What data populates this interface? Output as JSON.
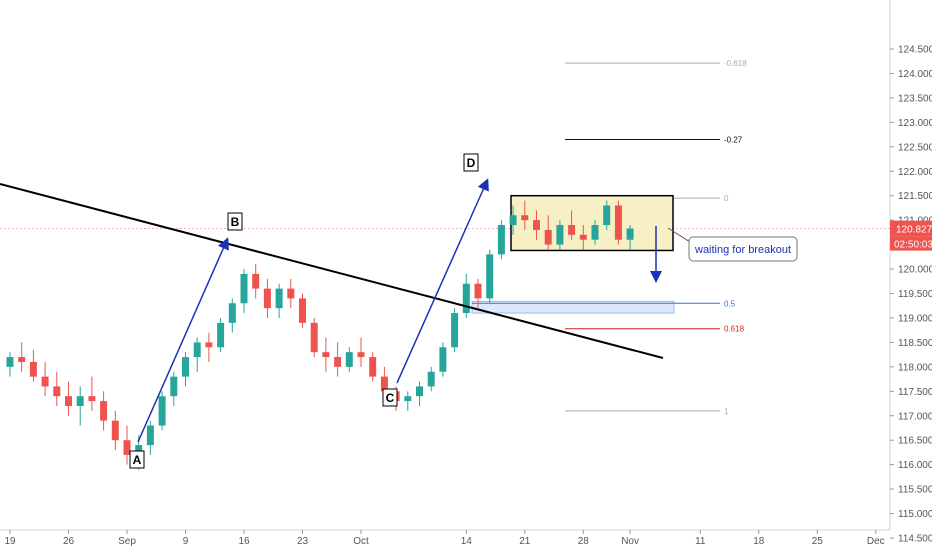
{
  "chart_data": {
    "type": "candlestick",
    "y_axis": {
      "ticks": [
        "114.500",
        "115.000",
        "115.500",
        "116.000",
        "116.500",
        "117.000",
        "117.500",
        "118.000",
        "118.500",
        "119.000",
        "119.500",
        "120.000",
        "120.500",
        "121.000",
        "121.500",
        "122.000",
        "122.500",
        "123.000",
        "123.500",
        "124.000",
        "124.500"
      ],
      "min": 114.5,
      "max": 124.5
    },
    "x_axis": {
      "ticks": [
        {
          "label": "19",
          "i": 0
        },
        {
          "label": "26",
          "i": 5
        },
        {
          "label": "Sep",
          "i": 10
        },
        {
          "label": "9",
          "i": 15
        },
        {
          "label": "16",
          "i": 20
        },
        {
          "label": "23",
          "i": 25
        },
        {
          "label": "Oct",
          "i": 30
        },
        {
          "label": "14",
          "i": 39
        },
        {
          "label": "21",
          "i": 44
        },
        {
          "label": "28",
          "i": 49
        },
        {
          "label": "Nov",
          "i": 53
        },
        {
          "label": "11",
          "i": 59
        },
        {
          "label": "18",
          "i": 64
        },
        {
          "label": "25",
          "i": 69
        },
        {
          "label": "Dec",
          "i": 74
        }
      ]
    },
    "candles": [
      [
        118.0,
        118.3,
        117.8,
        118.2
      ],
      [
        118.2,
        118.5,
        117.9,
        118.1
      ],
      [
        118.1,
        118.35,
        117.7,
        117.8
      ],
      [
        117.8,
        118.1,
        117.4,
        117.6
      ],
      [
        117.6,
        117.9,
        117.2,
        117.4
      ],
      [
        117.4,
        117.7,
        117.0,
        117.2
      ],
      [
        117.2,
        117.6,
        116.8,
        117.4
      ],
      [
        117.4,
        117.8,
        117.1,
        117.3
      ],
      [
        117.3,
        117.5,
        116.7,
        116.9
      ],
      [
        116.9,
        117.1,
        116.3,
        116.5
      ],
      [
        116.5,
        116.8,
        116.0,
        116.2
      ],
      [
        116.2,
        116.6,
        115.9,
        116.4
      ],
      [
        116.4,
        116.9,
        116.2,
        116.8
      ],
      [
        116.8,
        117.5,
        116.7,
        117.4
      ],
      [
        117.4,
        117.9,
        117.2,
        117.8
      ],
      [
        117.8,
        118.3,
        117.6,
        118.2
      ],
      [
        118.2,
        118.6,
        117.9,
        118.5
      ],
      [
        118.5,
        118.7,
        118.1,
        118.4
      ],
      [
        118.4,
        119.0,
        118.3,
        118.9
      ],
      [
        118.9,
        119.4,
        118.7,
        119.3
      ],
      [
        119.3,
        120.0,
        119.1,
        119.9
      ],
      [
        119.9,
        120.1,
        119.4,
        119.6
      ],
      [
        119.6,
        119.8,
        119.0,
        119.2
      ],
      [
        119.2,
        119.7,
        119.0,
        119.6
      ],
      [
        119.6,
        119.8,
        119.2,
        119.4
      ],
      [
        119.4,
        119.5,
        118.8,
        118.9
      ],
      [
        118.9,
        119.0,
        118.2,
        118.3
      ],
      [
        118.3,
        118.6,
        117.9,
        118.2
      ],
      [
        118.2,
        118.5,
        117.8,
        118.0
      ],
      [
        118.0,
        118.4,
        117.9,
        118.3
      ],
      [
        118.3,
        118.6,
        118.0,
        118.2
      ],
      [
        118.2,
        118.3,
        117.7,
        117.8
      ],
      [
        117.8,
        118.0,
        117.4,
        117.5
      ],
      [
        117.5,
        117.6,
        117.1,
        117.3
      ],
      [
        117.3,
        117.5,
        117.1,
        117.4
      ],
      [
        117.4,
        117.7,
        117.2,
        117.6
      ],
      [
        117.6,
        118.0,
        117.5,
        117.9
      ],
      [
        117.9,
        118.5,
        117.8,
        118.4
      ],
      [
        118.4,
        119.2,
        118.3,
        119.1
      ],
      [
        119.1,
        119.9,
        119.0,
        119.7
      ],
      [
        119.7,
        119.8,
        119.2,
        119.4
      ],
      [
        119.4,
        120.4,
        119.3,
        120.3
      ],
      [
        120.3,
        121.0,
        120.2,
        120.9
      ],
      [
        120.9,
        121.3,
        120.7,
        121.1
      ],
      [
        121.1,
        121.4,
        120.8,
        121.0
      ],
      [
        121.0,
        121.2,
        120.6,
        120.8
      ],
      [
        120.8,
        121.1,
        120.4,
        120.5
      ],
      [
        120.5,
        121.0,
        120.4,
        120.9
      ],
      [
        120.9,
        121.2,
        120.6,
        120.7
      ],
      [
        120.7,
        120.9,
        120.4,
        120.6
      ],
      [
        120.6,
        121.0,
        120.5,
        120.9
      ],
      [
        120.9,
        121.4,
        120.8,
        121.3
      ],
      [
        121.3,
        121.4,
        120.5,
        120.6
      ],
      [
        120.6,
        120.9,
        120.4,
        120.83
      ]
    ],
    "fib_levels": [
      {
        "label": "-0.618",
        "price": 124.21,
        "color": "#aaaaaa"
      },
      {
        "label": "-0.27",
        "price": 122.65,
        "color": "#111111"
      },
      {
        "label": "0",
        "price": 121.45,
        "color": "#aaaaaa"
      },
      {
        "label": "0.5",
        "price": 119.3,
        "color": "#3a6fd8"
      },
      {
        "label": "0.618",
        "price": 118.78,
        "color": "#d42020"
      },
      {
        "label": "1",
        "price": 117.1,
        "color": "#aaaaaa"
      }
    ],
    "current_price": "120.827",
    "countdown": "02:50:03",
    "wave_labels": [
      "A",
      "B",
      "C",
      "D"
    ],
    "annotation": "waiting for breakout"
  },
  "colors": {
    "up": "#26a69a",
    "down": "#ef5350",
    "trendline": "#000000",
    "wave_line": "#1a32b8",
    "range_box_fill": "#f6f0c4",
    "range_box_stroke": "#000000",
    "fib_zone_fill": "#dce8fb",
    "price_tag": "#ef5350"
  }
}
